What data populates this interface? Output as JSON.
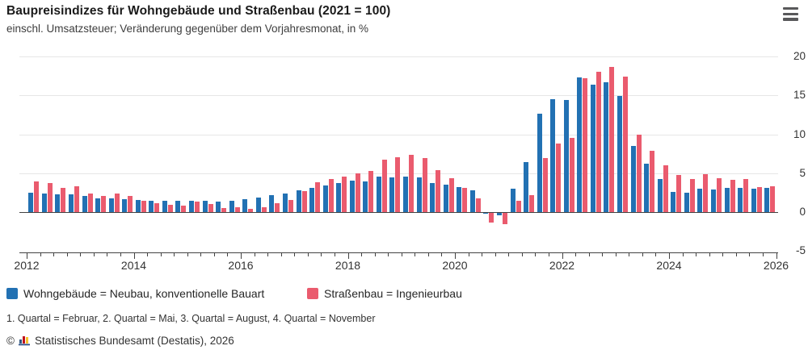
{
  "header": {
    "title": "Baupreisindizes für Wohngebäude und Straßenbau (2021 = 100)",
    "subtitle": "einschl. Umsatzsteuer; Veränderung gegenüber dem Vorjahresmonat, in %"
  },
  "menu_icon": "hamburger-context-menu",
  "chart_data": {
    "type": "bar",
    "title": "Baupreisindizes für Wohngebäude und Straßenbau (2021 = 100)",
    "subtitle": "einschl. Umsatzsteuer; Veränderung gegenüber dem Vorjahresmonat, in %",
    "xlabel": "",
    "ylabel": "Veränderung gegenüber dem Vorjahresmonat, in %",
    "ylim": [
      -5,
      20
    ],
    "y_ticks": [
      20,
      15,
      10,
      5,
      0,
      -5
    ],
    "x_tick_labels": [
      "2012",
      "2014",
      "2016",
      "2018",
      "2020",
      "2022",
      "2024",
      "2026"
    ],
    "grid": true,
    "legend_position": "bottom-left",
    "categories": [
      "2012 Q1",
      "2012 Q2",
      "2012 Q3",
      "2012 Q4",
      "2013 Q1",
      "2013 Q2",
      "2013 Q3",
      "2013 Q4",
      "2014 Q1",
      "2014 Q2",
      "2014 Q3",
      "2014 Q4",
      "2015 Q1",
      "2015 Q2",
      "2015 Q3",
      "2015 Q4",
      "2016 Q1",
      "2016 Q2",
      "2016 Q3",
      "2016 Q4",
      "2017 Q1",
      "2017 Q2",
      "2017 Q3",
      "2017 Q4",
      "2018 Q1",
      "2018 Q2",
      "2018 Q3",
      "2018 Q4",
      "2019 Q1",
      "2019 Q2",
      "2019 Q3",
      "2019 Q4",
      "2020 Q1",
      "2020 Q2",
      "2020 Q3",
      "2020 Q4",
      "2021 Q1",
      "2021 Q2",
      "2021 Q3",
      "2021 Q4",
      "2022 Q1",
      "2022 Q2",
      "2022 Q3",
      "2022 Q4",
      "2023 Q1",
      "2023 Q2",
      "2023 Q3",
      "2023 Q4",
      "2024 Q1",
      "2024 Q2",
      "2024 Q3",
      "2024 Q4",
      "2025 Q1",
      "2025 Q2",
      "2025 Q3",
      "2025 Q4"
    ],
    "series": [
      {
        "name": "Wohngebäude = Neubau, konventionelle Bauart",
        "color": "#2271b3",
        "values": [
          2.5,
          2.4,
          2.3,
          2.3,
          2.1,
          1.8,
          1.8,
          1.7,
          1.6,
          1.5,
          1.5,
          1.4,
          1.5,
          1.5,
          1.3,
          1.5,
          1.7,
          1.9,
          2.2,
          2.4,
          2.8,
          3.1,
          3.4,
          3.7,
          4.0,
          3.9,
          4.6,
          4.5,
          4.6,
          4.5,
          3.7,
          3.5,
          3.2,
          2.8,
          -0.1,
          -0.3,
          3.0,
          6.4,
          12.6,
          14.5,
          14.4,
          17.3,
          16.4,
          16.7,
          14.9,
          8.5,
          6.2,
          4.2,
          2.6,
          2.5,
          3.0,
          2.9,
          3.1,
          3.1,
          3.0,
          3.1
        ]
      },
      {
        "name": "Straßenbau = Ingenieurbau",
        "color": "#ea5b6e",
        "values": [
          3.9,
          3.7,
          3.1,
          3.3,
          2.4,
          2.1,
          2.4,
          2.1,
          1.4,
          1.1,
          0.9,
          0.8,
          1.3,
          1.0,
          0.5,
          0.6,
          0.4,
          0.6,
          1.1,
          1.6,
          2.7,
          3.8,
          4.2,
          4.6,
          5.0,
          5.3,
          6.7,
          7.0,
          7.4,
          6.9,
          5.4,
          4.4,
          3.1,
          1.8,
          -1.2,
          -1.5,
          1.5,
          2.2,
          6.9,
          8.8,
          9.5,
          17.2,
          18.0,
          18.7,
          17.4,
          10.0,
          7.9,
          6.0,
          4.8,
          4.2,
          4.9,
          4.4,
          4.1,
          4.3,
          3.2,
          3.3
        ]
      }
    ]
  },
  "legend": {
    "items": [
      {
        "label": "Wohngebäude = Neubau, konventionelle Bauart",
        "color": "#2271b3"
      },
      {
        "label": "Straßenbau = Ingenieurbau",
        "color": "#ea5b6e"
      }
    ]
  },
  "footnote": "1. Quartal = Februar, 2. Quartal = Mai, 3. Quartal = August, 4. Quartal = November",
  "copyright": {
    "prefix": "©",
    "text": "Statistisches Bundesamt (Destatis), 2026"
  }
}
